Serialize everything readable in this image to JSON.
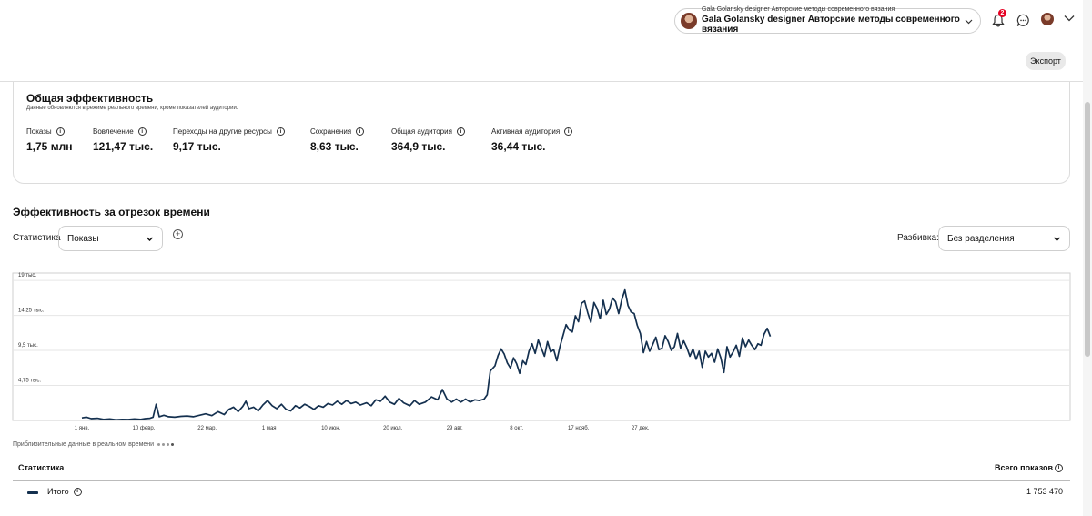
{
  "header": {
    "account_subtitle": "Gala Golansky designer Авторские методы современного вязания",
    "account_title": "Gala Golansky designer Авторские методы современного вязания",
    "notification_count": "2",
    "export_label": "Экспорт"
  },
  "overview": {
    "title": "Общая эффективность",
    "subtitle": "Данные обновляются в режиме реального времени, кроме показателей аудитории.",
    "metrics": [
      {
        "label": "Показы",
        "value": "1,75 млн"
      },
      {
        "label": "Вовлечение",
        "value": "121,47 тыс."
      },
      {
        "label": "Переходы на другие ресурсы",
        "value": "9,17 тыс."
      },
      {
        "label": "Сохранения",
        "value": "8,63 тыс."
      },
      {
        "label": "Общая аудитория",
        "value": "364,9 тыс."
      },
      {
        "label": "Активная аудитория",
        "value": "36,44 тыс."
      }
    ]
  },
  "period": {
    "title": "Эффективность за отрезок времени",
    "stat_label": "Статистика",
    "stat_value": "Показы",
    "split_label": "Разбивка:",
    "split_value": "Без разделения",
    "add_symbol": "+"
  },
  "chart_data": {
    "type": "line",
    "title": "",
    "ylabel": "",
    "ylim": [
      0,
      20000
    ],
    "yticks": [
      {
        "value": 19000,
        "label": "19 тыс."
      },
      {
        "value": 14250,
        "label": "14,25 тыс."
      },
      {
        "value": 9500,
        "label": "9,5 тыс."
      },
      {
        "value": 4750,
        "label": "4,75 тыс."
      }
    ],
    "xlabels": [
      {
        "day": 0,
        "label": "1 янв."
      },
      {
        "day": 40,
        "label": "10 февр."
      },
      {
        "day": 81,
        "label": "22 мар."
      },
      {
        "day": 121,
        "label": "1 мая"
      },
      {
        "day": 161,
        "label": "10 июн."
      },
      {
        "day": 201,
        "label": "20 июл."
      },
      {
        "day": 241,
        "label": "29 авг."
      },
      {
        "day": 281,
        "label": "8 окт."
      },
      {
        "day": 321,
        "label": "17 нояб."
      },
      {
        "day": 361,
        "label": "27 дек."
      }
    ],
    "series": [
      {
        "name": "Итого",
        "color": "#14304f",
        "points": [
          [
            0,
            350
          ],
          [
            3,
            450
          ],
          [
            6,
            250
          ],
          [
            10,
            300
          ],
          [
            14,
            150
          ],
          [
            18,
            200
          ],
          [
            22,
            100
          ],
          [
            26,
            150
          ],
          [
            30,
            120
          ],
          [
            34,
            200
          ],
          [
            38,
            150
          ],
          [
            41,
            250
          ],
          [
            44,
            300
          ],
          [
            46,
            450
          ],
          [
            48,
            2200
          ],
          [
            50,
            500
          ],
          [
            53,
            700
          ],
          [
            56,
            500
          ],
          [
            60,
            450
          ],
          [
            64,
            550
          ],
          [
            68,
            600
          ],
          [
            72,
            500
          ],
          [
            76,
            700
          ],
          [
            80,
            900
          ],
          [
            84,
            650
          ],
          [
            88,
            1200
          ],
          [
            92,
            800
          ],
          [
            95,
            1500
          ],
          [
            98,
            1800
          ],
          [
            101,
            1200
          ],
          [
            104,
            1900
          ],
          [
            106,
            2600
          ],
          [
            108,
            1600
          ],
          [
            111,
            1800
          ],
          [
            114,
            1300
          ],
          [
            117,
            2100
          ],
          [
            120,
            2700
          ],
          [
            123,
            2000
          ],
          [
            126,
            1600
          ],
          [
            129,
            2200
          ],
          [
            132,
            1500
          ],
          [
            135,
            1300
          ],
          [
            138,
            2000
          ],
          [
            141,
            1700
          ],
          [
            144,
            2200
          ],
          [
            147,
            1900
          ],
          [
            150,
            1500
          ],
          [
            153,
            2000
          ],
          [
            156,
            1800
          ],
          [
            159,
            2300
          ],
          [
            162,
            2100
          ],
          [
            165,
            2600
          ],
          [
            168,
            2200
          ],
          [
            171,
            2700
          ],
          [
            174,
            2300
          ],
          [
            177,
            2500
          ],
          [
            180,
            2100
          ],
          [
            184,
            2400
          ],
          [
            187,
            2000
          ],
          [
            190,
            2800
          ],
          [
            193,
            2600
          ],
          [
            196,
            3300
          ],
          [
            199,
            2500
          ],
          [
            202,
            2200
          ],
          [
            205,
            3000
          ],
          [
            208,
            2400
          ],
          [
            212,
            2000
          ],
          [
            215,
            2700
          ],
          [
            218,
            2200
          ],
          [
            222,
            2500
          ],
          [
            226,
            3200
          ],
          [
            230,
            2800
          ],
          [
            233,
            4200
          ],
          [
            236,
            2900
          ],
          [
            239,
            2500
          ],
          [
            242,
            2900
          ],
          [
            245,
            2500
          ],
          [
            248,
            2900
          ],
          [
            251,
            2500
          ],
          [
            254,
            2800
          ],
          [
            257,
            2700
          ],
          [
            260,
            2900
          ],
          [
            262,
            3500
          ],
          [
            264,
            6700
          ],
          [
            267,
            7400
          ],
          [
            269,
            8800
          ],
          [
            271,
            9700
          ],
          [
            273,
            9000
          ],
          [
            275,
            7800
          ],
          [
            277,
            7100
          ],
          [
            279,
            8500
          ],
          [
            281,
            7700
          ],
          [
            283,
            6400
          ],
          [
            285,
            8100
          ],
          [
            287,
            7600
          ],
          [
            289,
            9400
          ],
          [
            291,
            10400
          ],
          [
            293,
            9100
          ],
          [
            295,
            10900
          ],
          [
            297,
            9800
          ],
          [
            299,
            8700
          ],
          [
            301,
            10700
          ],
          [
            303,
            9300
          ],
          [
            305,
            9600
          ],
          [
            307,
            8100
          ],
          [
            309,
            10000
          ],
          [
            311,
            11500
          ],
          [
            313,
            13000
          ],
          [
            315,
            12300
          ],
          [
            317,
            12000
          ],
          [
            319,
            14200
          ],
          [
            321,
            13400
          ],
          [
            323,
            15900
          ],
          [
            325,
            16200
          ],
          [
            327,
            14600
          ],
          [
            329,
            13300
          ],
          [
            331,
            16000
          ],
          [
            333,
            15200
          ],
          [
            335,
            13800
          ],
          [
            337,
            16300
          ],
          [
            339,
            14400
          ],
          [
            341,
            15100
          ],
          [
            343,
            16600
          ],
          [
            345,
            16100
          ],
          [
            347,
            14500
          ],
          [
            349,
            16400
          ],
          [
            351,
            17700
          ],
          [
            353,
            15600
          ],
          [
            355,
            14700
          ],
          [
            357,
            14500
          ],
          [
            359,
            12900
          ],
          [
            361,
            11800
          ],
          [
            363,
            9200
          ],
          [
            365,
            10700
          ],
          [
            367,
            9400
          ],
          [
            369,
            10300
          ],
          [
            371,
            11300
          ],
          [
            373,
            9600
          ],
          [
            375,
            9800
          ],
          [
            377,
            11500
          ],
          [
            379,
            10700
          ],
          [
            381,
            9500
          ],
          [
            383,
            10000
          ],
          [
            385,
            11800
          ],
          [
            387,
            9800
          ],
          [
            389,
            10800
          ],
          [
            391,
            9900
          ],
          [
            393,
            8700
          ],
          [
            395,
            9700
          ],
          [
            397,
            8300
          ],
          [
            399,
            9400
          ],
          [
            401,
            7200
          ],
          [
            403,
            9400
          ],
          [
            405,
            8600
          ],
          [
            407,
            9100
          ],
          [
            409,
            7900
          ],
          [
            411,
            9700
          ],
          [
            413,
            8500
          ],
          [
            415,
            6500
          ],
          [
            417,
            10000
          ],
          [
            419,
            8600
          ],
          [
            421,
            9300
          ],
          [
            423,
            10200
          ],
          [
            425,
            8700
          ],
          [
            427,
            11200
          ],
          [
            429,
            10000
          ],
          [
            431,
            10900
          ],
          [
            433,
            10200
          ],
          [
            435,
            9600
          ],
          [
            437,
            10400
          ],
          [
            439,
            10200
          ],
          [
            441,
            11700
          ],
          [
            443,
            12500
          ],
          [
            445,
            11400
          ]
        ]
      }
    ],
    "note": "Приблизительные данные в реальном времени"
  },
  "table": {
    "col_stat": "Статистика",
    "col_total": "Всего показов",
    "rows": [
      {
        "label": "Итого",
        "value": "1 753 470"
      }
    ]
  }
}
